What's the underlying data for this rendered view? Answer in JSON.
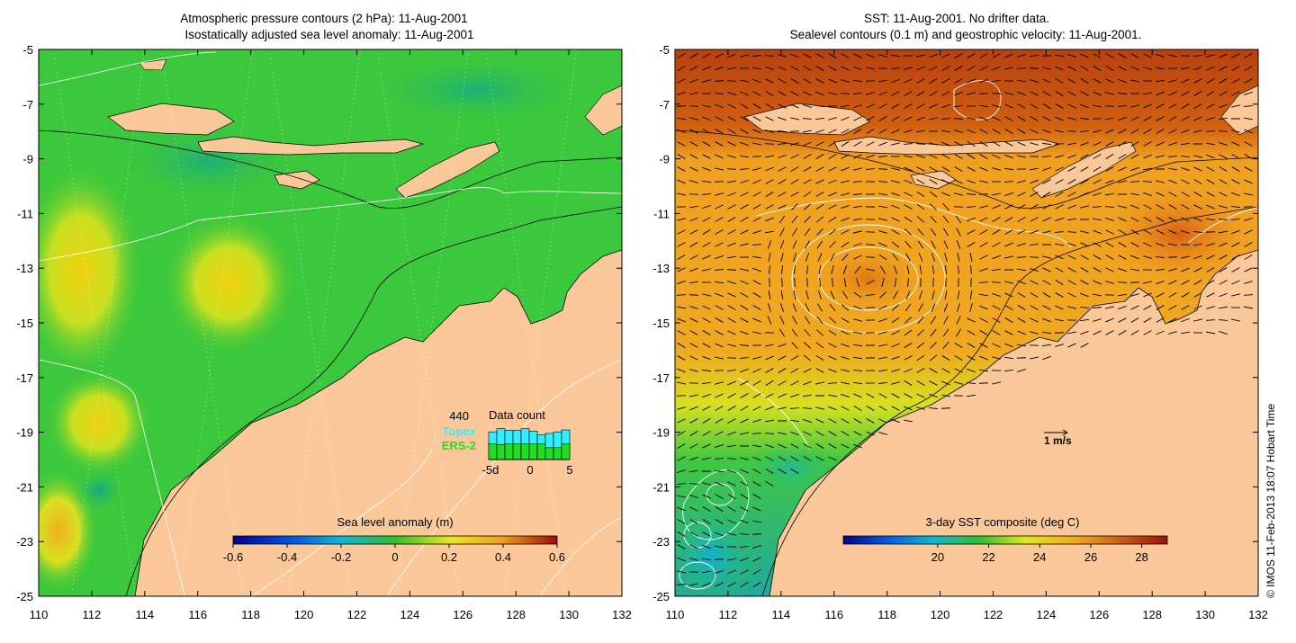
{
  "left_panel": {
    "title_line1": "Atmospheric pressure contours (2 hPa): 11-Aug-2001",
    "title_line2": "Isostatically adjusted sea level anomaly: 11-Aug-2001",
    "colorbar": {
      "label": "Sea level anomaly (m)",
      "ticks": [
        "-0.6",
        "-0.4",
        "-0.2",
        "0",
        "0.2",
        "0.4",
        "0.6"
      ]
    },
    "data_count": {
      "title": "Data count",
      "value": "440",
      "series": [
        "Topex",
        "ERS-2"
      ],
      "axis_ticks": [
        "-5d",
        "0",
        "5"
      ],
      "topex_color": "#33eeff",
      "ers2_color": "#22dd22",
      "topex_bars": [
        0.7,
        0.78,
        0.74,
        0.74,
        0.78,
        0.72,
        0.62,
        0.66,
        0.7,
        0.75
      ],
      "ers_bars": [
        0.4,
        0.38,
        0.4,
        0.4,
        0.4,
        0.4,
        0.4,
        0.3,
        0.3,
        0.4
      ]
    }
  },
  "right_panel": {
    "title_line1": "SST: 11-Aug-2001. No drifter data.",
    "title_line2": "Sealevel contours (0.1 m) and geostrophic velocity: 11-Aug-2001.",
    "colorbar": {
      "label": "3-day SST composite (deg C)",
      "ticks": [
        "20",
        "22",
        "24",
        "26",
        "28"
      ]
    },
    "velocity_legend": "1 m/s"
  },
  "axes": {
    "lon_ticks": [
      "110",
      "112",
      "114",
      "116",
      "118",
      "120",
      "122",
      "124",
      "126",
      "128",
      "130",
      "132"
    ],
    "lat_ticks": [
      "-5",
      "-7",
      "-9",
      "-11",
      "-13",
      "-15",
      "-17",
      "-19",
      "-21",
      "-23",
      "-25"
    ],
    "lon_range": [
      110,
      132
    ],
    "lat_range": [
      -25,
      -5
    ]
  },
  "credit": "© IMOS 11-Feb-2013 18:07 Hobart Time",
  "colors": {
    "land": "#fbc89a",
    "sea_base_left": "#3cc83c",
    "sea_base_right": "#f0a020"
  }
}
